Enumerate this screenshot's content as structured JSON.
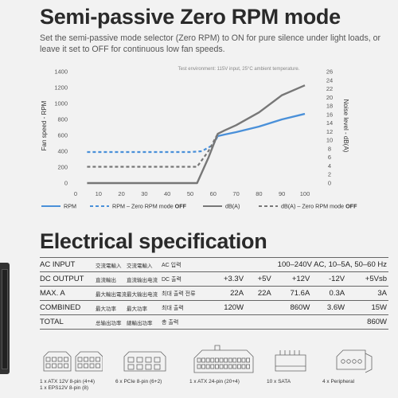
{
  "heading": "Semi-passive Zero RPM mode",
  "intro": "Set the semi-passive mode selector (Zero RPM) to ON for pure silence under light loads, or leave it set to OFF for continuous low fan speeds.",
  "chart_data": {
    "type": "line",
    "annotation": "Test environment: 115V input, 25°C ambient temperature.",
    "ylabel": "Fan speed - RPM",
    "y2label": "Noise level - dB(A)",
    "xlim": [
      0,
      100
    ],
    "x_ticks": [
      0,
      10,
      20,
      30,
      40,
      50,
      60,
      70,
      80,
      90,
      100
    ],
    "ylim": [
      0,
      1400
    ],
    "y_ticks": [
      0,
      200,
      400,
      600,
      800,
      1000,
      1200,
      1400
    ],
    "y2lim": [
      0,
      26
    ],
    "y2_ticks": [
      0,
      2,
      4,
      6,
      8,
      10,
      12,
      14,
      16,
      18,
      20,
      22,
      24,
      26
    ],
    "legend_position": "bottom",
    "grid": false,
    "series": [
      {
        "name": "RPM",
        "axis": "left",
        "color": "#4a90d9",
        "dashed": false,
        "x": [
          62,
          65,
          70,
          80,
          90,
          100
        ],
        "y": [
          590,
          610,
          640,
          710,
          800,
          870
        ]
      },
      {
        "name": "RPM – Zero RPM mode",
        "name_suffix": "OFF",
        "axis": "left",
        "color": "#4a90d9",
        "dashed": true,
        "x": [
          5,
          50,
          55,
          60,
          62
        ],
        "y": [
          390,
          390,
          400,
          480,
          590
        ]
      },
      {
        "name": "dB(A)",
        "axis": "right",
        "color": "#777777",
        "dashed": false,
        "x": [
          5,
          50,
          53,
          58,
          62,
          65,
          70,
          80,
          90,
          100
        ],
        "y": [
          0,
          0,
          0,
          6,
          11.5,
          12.3,
          13.5,
          16.5,
          20.5,
          22.8
        ]
      },
      {
        "name": "dB(A) – Zero RPM mode",
        "name_suffix": "OFF",
        "axis": "right",
        "color": "#777777",
        "dashed": true,
        "x": [
          5,
          50,
          53,
          58,
          62
        ],
        "y": [
          3.8,
          3.8,
          3.8,
          7.5,
          11.5
        ]
      }
    ]
  },
  "spec_heading": "Electrical specification",
  "spec_rows": [
    {
      "label": "AC INPUT",
      "cn1": "交流電輸入",
      "cn2": "交流電輸入",
      "kr": "AC 입력",
      "span": "100–240V AC, 10–5A, 50–60 Hz"
    },
    {
      "label": "DC OUTPUT",
      "cn1": "直流輸出",
      "cn2": "直流输出电流",
      "kr": "DC 출력",
      "vals": [
        "+3.3V",
        "+5V",
        "+12V",
        "-12V",
        "+5Vsb"
      ]
    },
    {
      "label": "MAX. A",
      "cn1": "最大輸出電流",
      "cn2": "最大输出电流",
      "kr": "최대 출력 전류",
      "vals": [
        "22A",
        "22A",
        "71.6A",
        "0.3A",
        "3A"
      ]
    },
    {
      "label": "COMBINED",
      "cn1": "最大功率",
      "cn2": "最大功率",
      "kr": "최대 출력",
      "vals": [
        "120W",
        "",
        "860W",
        "3.6W",
        "15W"
      ]
    },
    {
      "label": "TOTAL",
      "cn1": "总输出功率",
      "cn2": "總輸出功率",
      "kr": "총 출력",
      "total": "860W"
    }
  ],
  "connectors": [
    {
      "label1": "1 x ATX 12V 8-pin (4+4)",
      "label2": "1 x EPS12V 8-pin (8)",
      "icon": "cpu-8pin-connector-icon"
    },
    {
      "label1": "6 x PCIe 8-pin (6+2)",
      "icon": "pcie-connector-icon"
    },
    {
      "label1": "1 x ATX 24-pin (20+4)",
      "icon": "atx-24pin-connector-icon"
    },
    {
      "label1": "10 x SATA",
      "icon": "sata-connector-icon"
    },
    {
      "label1": "4 x Peripheral",
      "icon": "molex-connector-icon"
    }
  ]
}
